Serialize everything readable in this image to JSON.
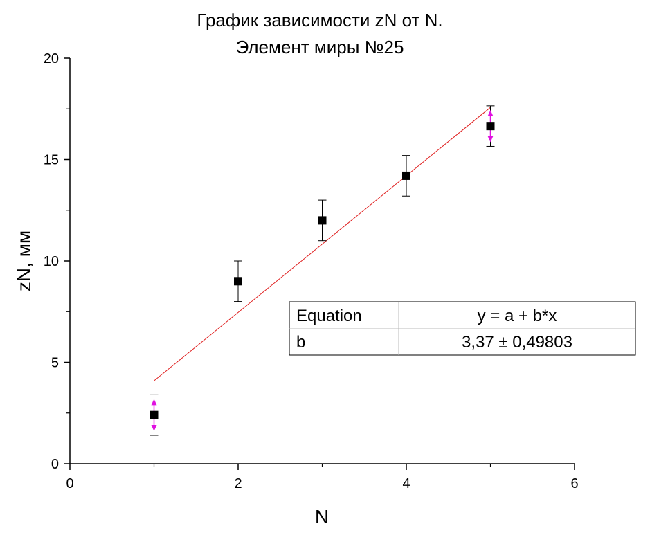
{
  "chart_data": {
    "type": "scatter",
    "title": [
      "График зависимости zN от N.",
      "Элемент миры №25"
    ],
    "xlabel": "N",
    "ylabel": "zN, мм",
    "xlim": [
      0,
      6
    ],
    "ylim": [
      0,
      20
    ],
    "xticks": [
      0,
      2,
      4,
      6
    ],
    "yticks": [
      0,
      5,
      10,
      15,
      20
    ],
    "grid": false,
    "points": [
      {
        "x": 1,
        "y": 2.4,
        "err": 1.0
      },
      {
        "x": 2,
        "y": 9.0,
        "err": 1.0
      },
      {
        "x": 3,
        "y": 12.0,
        "err": 1.0
      },
      {
        "x": 4,
        "y": 14.2,
        "err": 1.0
      },
      {
        "x": 5,
        "y": 16.65,
        "err": 1.0
      }
    ],
    "fit_line": {
      "x": [
        1,
        5
      ],
      "y": [
        4.09,
        17.57
      ],
      "color": "#e02020"
    },
    "fit_table": {
      "rows": [
        [
          "Equation",
          "y = a + b*x"
        ],
        [
          "b",
          "3,37 ± 0,49803"
        ]
      ]
    },
    "colors": {
      "marker": "#000000",
      "fit": "#e02020",
      "highlight_arrow": "#e010e0"
    }
  }
}
